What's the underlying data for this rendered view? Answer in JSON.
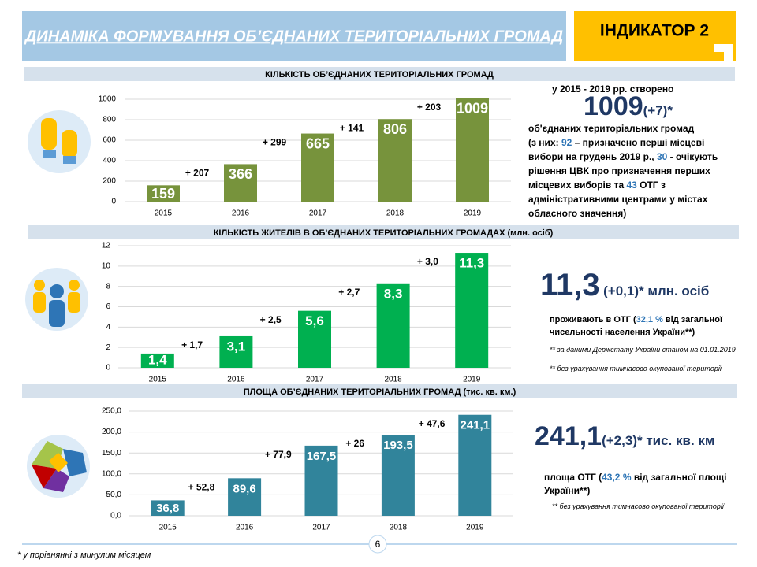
{
  "header": {
    "title": "ДИНАМІКА ФОРМУВАННЯ ОБ’ЄДНАНИХ ТЕРИТОРІАЛЬНИХ ГРОМАД",
    "indicator": "ІНДИКАТОР 2"
  },
  "chart_data": [
    {
      "type": "bar",
      "title": "КІЛЬКІСТЬ ОБ’ЄДНАНИХ ТЕРИТОРІАЛЬНИХ ГРОМАД",
      "categories": [
        "2015",
        "2016",
        "2017",
        "2018",
        "2019"
      ],
      "values": [
        159,
        366,
        665,
        806,
        1009
      ],
      "color": "#77933c",
      "ylim": [
        0,
        1000
      ],
      "yticks": [
        0,
        200,
        400,
        600,
        800,
        1000
      ],
      "grid": true,
      "annotations": [
        "+ 207",
        "+ 299",
        "+ 141",
        "+ 203"
      ]
    },
    {
      "type": "bar",
      "title": "КІЛЬКІСТЬ ЖИТЕЛІВ В ОБ’ЄДНАНИХ ТЕРИТОРІАЛЬНИХ ГРОМАДАХ (млн. осіб)",
      "categories": [
        "2015",
        "2016",
        "2017",
        "2018",
        "2019"
      ],
      "values": [
        1.4,
        3.1,
        5.6,
        8.3,
        11.3
      ],
      "value_labels": [
        "1,4",
        "3,1",
        "5,6",
        "8,3",
        "11,3"
      ],
      "color": "#00b050",
      "ylim": [
        0,
        12
      ],
      "yticks": [
        0,
        2,
        4,
        6,
        8,
        10,
        12
      ],
      "grid": true,
      "annotations": [
        "+ 1,7",
        "+ 2,5",
        "+ 2,7",
        "+ 3,0"
      ]
    },
    {
      "type": "bar",
      "title": "ПЛОЩА ОБ’ЄДНАНИХ ТЕРИТОРІАЛЬНИХ ГРОМАД (тис. кв. км.)",
      "categories": [
        "2015",
        "2016",
        "2017",
        "2018",
        "2019"
      ],
      "values": [
        36.8,
        89.6,
        167.5,
        193.5,
        241.1
      ],
      "value_labels": [
        "36,8",
        "89,6",
        "167,5",
        "193,5",
        "241,1"
      ],
      "color": "#31849b",
      "ylim": [
        0,
        250
      ],
      "yticks": [
        {
          "value": 0,
          "label": "0,0"
        },
        {
          "value": 50,
          "label": "50,0"
        },
        {
          "value": 100,
          "label": "100,0"
        },
        {
          "value": 150,
          "label": "150,0"
        },
        {
          "value": 200,
          "label": "200,0"
        },
        {
          "value": 250,
          "label": "250,0"
        }
      ],
      "grid": true,
      "annotations": [
        "+ 52,8",
        "+ 77,9",
        "+ 26",
        "+ 47,6"
      ]
    }
  ],
  "panels": [
    {
      "lead": "у 2015  - 2019  рр. створено",
      "value": "1009",
      "change": "(+7)*",
      "text": [
        "об'єднаних територіальних громад",
        "(з них: ",
        "92",
        " – призначено перші місцеві вибори на грудень 2019  р., ",
        "30",
        " - очікують рішення ЦВК про призначення перших місцевих виборів та ",
        "43",
        " ОТГ з адміністративними центрами у містах обласного значення)"
      ]
    },
    {
      "value": "11,3",
      "change": "(+0,1)* млн. осіб",
      "text": [
        "проживають в ОТГ (",
        "32,1 %",
        " від загальної чисельності  населення України**)"
      ],
      "notes": [
        "** за даними Держстату України станом на 01.01.2019",
        "** без урахування тимчасово окупованої території"
      ]
    },
    {
      "value": "241,1",
      "change": "(+2,3)* тис. кв. км",
      "text": [
        "площа ОТГ (",
        "43,2 %",
        " від загальної площі України**)"
      ],
      "notes": [
        "** без урахування тимчасово окупованої території"
      ]
    }
  ],
  "footer": {
    "note": "* у порівнянні з минулим місяцем",
    "page": "6"
  }
}
